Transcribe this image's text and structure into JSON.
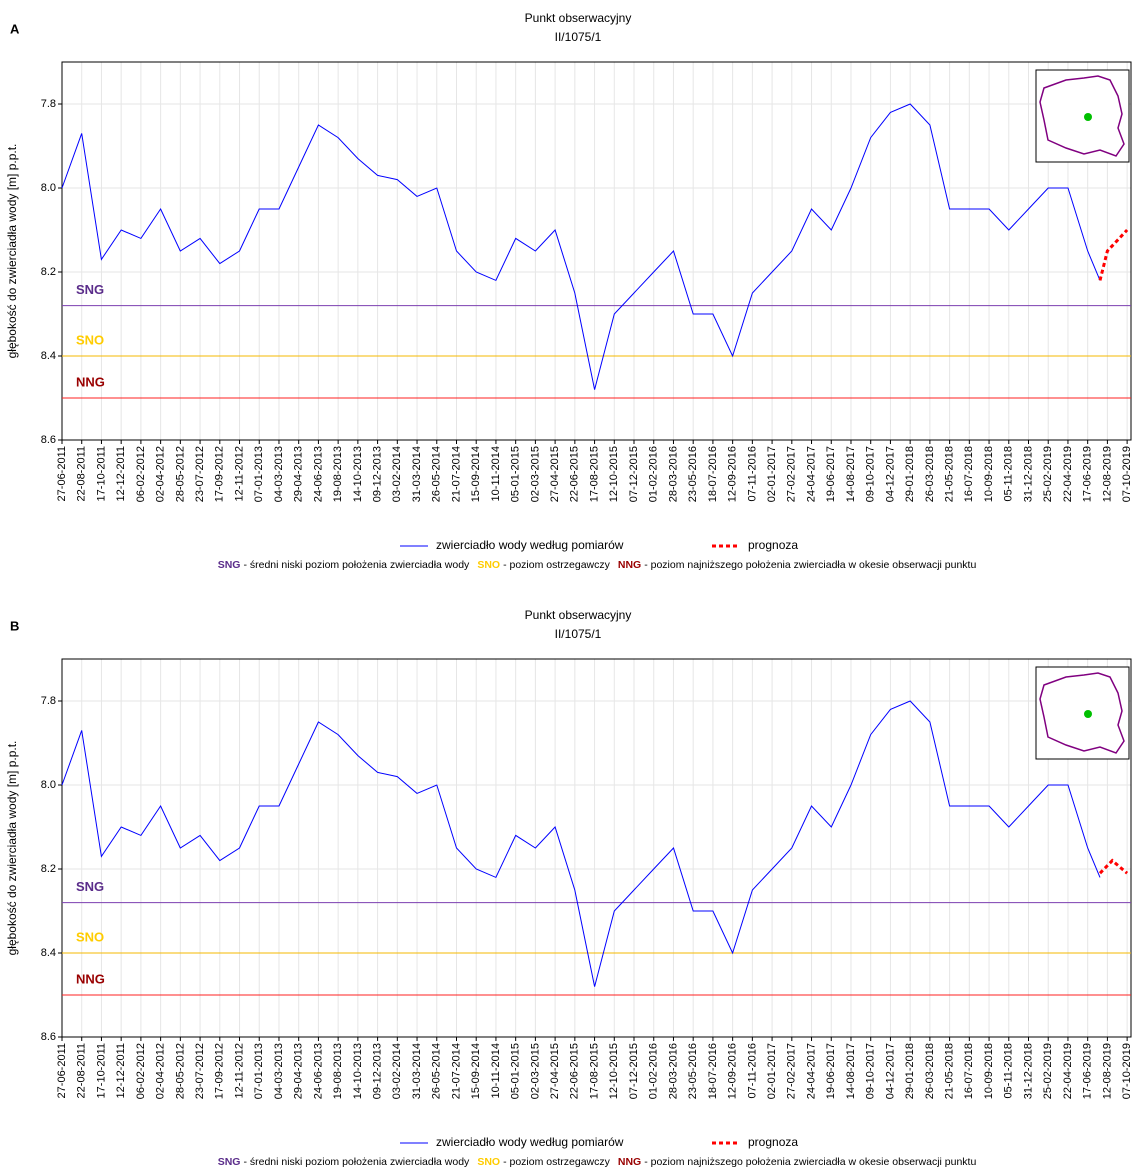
{
  "chart_data": [
    {
      "type": "line",
      "panel_label": "A",
      "title": "Punkt obserwacyjny",
      "subtitle": "II/1075/1",
      "ylabel": "głębokość do zwierciadła wody [m] p.p.t.",
      "xlim": [
        "27-06-2011",
        "18-10-2019"
      ],
      "xticks": [
        "27-06-2011",
        "22-08-2011",
        "17-10-2011",
        "12-12-2011",
        "06-02-2012",
        "02-04-2012",
        "28-05-2012",
        "23-07-2012",
        "17-09-2012",
        "12-11-2012",
        "07-01-2013",
        "04-03-2013",
        "29-04-2013",
        "24-06-2013",
        "19-08-2013",
        "14-10-2013",
        "09-12-2013",
        "03-02-2014",
        "31-03-2014",
        "26-05-2014",
        "21-07-2014",
        "15-09-2014",
        "10-11-2014",
        "05-01-2015",
        "02-03-2015",
        "27-04-2015",
        "22-06-2015",
        "17-08-2015",
        "12-10-2015",
        "07-12-2015",
        "01-02-2016",
        "28-03-2016",
        "23-05-2016",
        "18-07-2016",
        "12-09-2016",
        "07-11-2016",
        "02-01-2017",
        "27-02-2017",
        "24-04-2017",
        "19-06-2017",
        "14-08-2017",
        "09-10-2017",
        "04-12-2017",
        "29-01-2018",
        "26-03-2018",
        "21-05-2018",
        "16-07-2018",
        "10-09-2018",
        "05-11-2018",
        "31-12-2018",
        "25-02-2019",
        "22-04-2019",
        "17-06-2019",
        "12-08-2019",
        "07-10-2019"
      ],
      "ylim": [
        7.7,
        8.6
      ],
      "y_inverted": true,
      "yticks": [
        7.8,
        {
          "value": 8,
          "label": "8.0"
        },
        8.2,
        8.4,
        8.6
      ],
      "grid": true,
      "series": [
        {
          "name": "zwierciadło wody według pomiarów",
          "color": "#0000ff",
          "dashed": false,
          "x": [
            "27-06-2011",
            "22-08-2011",
            "17-10-2011",
            "12-12-2011",
            "06-02-2012",
            "02-04-2012",
            "28-05-2012",
            "23-07-2012",
            "17-09-2012",
            "12-11-2012",
            "07-01-2013",
            "04-03-2013",
            "29-04-2013",
            "24-06-2013",
            "19-08-2013",
            "14-10-2013",
            "09-12-2013",
            "03-02-2014",
            "31-03-2014",
            "26-05-2014",
            "21-07-2014",
            "15-09-2014",
            "10-11-2014",
            "05-01-2015",
            "02-03-2015",
            "27-04-2015",
            "22-06-2015",
            "17-08-2015",
            "12-10-2015",
            "07-12-2015",
            "01-02-2016",
            "28-03-2016",
            "23-05-2016",
            "18-07-2016",
            "12-09-2016",
            "07-11-2016",
            "02-01-2017",
            "27-02-2017",
            "24-04-2017",
            "19-06-2017",
            "14-08-2017",
            "09-10-2017",
            "04-12-2017",
            "29-01-2018",
            "26-03-2018",
            "21-05-2018",
            "16-07-2018",
            "10-09-2018",
            "05-11-2018",
            "31-12-2018",
            "25-02-2019",
            "22-04-2019",
            "17-06-2019",
            "22-07-2019"
          ],
          "values": [
            8.0,
            7.87,
            8.17,
            8.1,
            8.12,
            8.05,
            8.15,
            8.12,
            8.18,
            8.15,
            8.05,
            8.05,
            7.95,
            7.85,
            7.88,
            7.93,
            7.97,
            7.98,
            8.02,
            8.0,
            8.15,
            8.2,
            8.22,
            8.12,
            8.15,
            8.1,
            8.25,
            8.48,
            8.3,
            8.25,
            8.2,
            8.15,
            8.3,
            8.3,
            8.4,
            8.25,
            8.2,
            8.15,
            8.05,
            8.1,
            8.0,
            7.88,
            7.82,
            7.8,
            7.85,
            8.05,
            8.05,
            8.05,
            8.1,
            8.05,
            8.0,
            8.0,
            8.15,
            8.22
          ]
        },
        {
          "name": "prognoza",
          "color": "#ff0000",
          "dashed": true,
          "x": [
            "22-07-2019",
            "12-08-2019",
            "07-10-2019"
          ],
          "values": [
            8.22,
            8.15,
            8.1
          ]
        }
      ],
      "reference_lines": [
        {
          "label": "SNG",
          "value": 8.28,
          "color": "#7b3fb0",
          "label_color": "#5a2c8a"
        },
        {
          "label": "SNO",
          "value": 8.4,
          "color": "#f5b800",
          "label_color": "#ffcc00"
        },
        {
          "label": "NNG",
          "value": 8.5,
          "color": "#ff2020",
          "label_color": "#990000"
        }
      ],
      "footnote": [
        "- średni niski poziom położenia zwierciadła wody",
        "- poziom ostrzegawczy",
        "- poziom najniższego położenia zwierciadła w okesie obserwacji punktu"
      ]
    },
    {
      "type": "line",
      "panel_label": "B",
      "title": "Punkt obserwacyjny",
      "subtitle": "II/1075/1",
      "ylabel": "głębokość do zwierciadła wody [m] p.p.t.",
      "xlim": [
        "27-06-2011",
        "18-10-2019"
      ],
      "xticks": [
        "27-06-2011",
        "22-08-2011",
        "17-10-2011",
        "12-12-2011",
        "06-02-2012",
        "02-04-2012",
        "28-05-2012",
        "23-07-2012",
        "17-09-2012",
        "12-11-2012",
        "07-01-2013",
        "04-03-2013",
        "29-04-2013",
        "24-06-2013",
        "19-08-2013",
        "14-10-2013",
        "09-12-2013",
        "03-02-2014",
        "31-03-2014",
        "26-05-2014",
        "21-07-2014",
        "15-09-2014",
        "10-11-2014",
        "05-01-2015",
        "02-03-2015",
        "27-04-2015",
        "22-06-2015",
        "17-08-2015",
        "12-10-2015",
        "07-12-2015",
        "01-02-2016",
        "28-03-2016",
        "23-05-2016",
        "18-07-2016",
        "12-09-2016",
        "07-11-2016",
        "02-01-2017",
        "27-02-2017",
        "24-04-2017",
        "19-06-2017",
        "14-08-2017",
        "09-10-2017",
        "04-12-2017",
        "29-01-2018",
        "26-03-2018",
        "21-05-2018",
        "16-07-2018",
        "10-09-2018",
        "05-11-2018",
        "31-12-2018",
        "25-02-2019",
        "22-04-2019",
        "17-06-2019",
        "12-08-2019",
        "07-10-2019"
      ],
      "ylim": [
        7.7,
        8.6
      ],
      "y_inverted": true,
      "yticks": [
        7.8,
        {
          "value": 8,
          "label": "8.0"
        },
        8.2,
        8.4,
        8.6
      ],
      "grid": true,
      "series": [
        {
          "name": "zwierciadło wody według pomiarów",
          "color": "#0000ff",
          "dashed": false,
          "x": [
            "27-06-2011",
            "22-08-2011",
            "17-10-2011",
            "12-12-2011",
            "06-02-2012",
            "02-04-2012",
            "28-05-2012",
            "23-07-2012",
            "17-09-2012",
            "12-11-2012",
            "07-01-2013",
            "04-03-2013",
            "29-04-2013",
            "24-06-2013",
            "19-08-2013",
            "14-10-2013",
            "09-12-2013",
            "03-02-2014",
            "31-03-2014",
            "26-05-2014",
            "21-07-2014",
            "15-09-2014",
            "10-11-2014",
            "05-01-2015",
            "02-03-2015",
            "27-04-2015",
            "22-06-2015",
            "17-08-2015",
            "12-10-2015",
            "07-12-2015",
            "01-02-2016",
            "28-03-2016",
            "23-05-2016",
            "18-07-2016",
            "12-09-2016",
            "07-11-2016",
            "02-01-2017",
            "27-02-2017",
            "24-04-2017",
            "19-06-2017",
            "14-08-2017",
            "09-10-2017",
            "04-12-2017",
            "29-01-2018",
            "26-03-2018",
            "21-05-2018",
            "16-07-2018",
            "10-09-2018",
            "05-11-2018",
            "31-12-2018",
            "25-02-2019",
            "22-04-2019",
            "17-06-2019",
            "22-07-2019"
          ],
          "values": [
            8.0,
            7.87,
            8.17,
            8.1,
            8.12,
            8.05,
            8.15,
            8.12,
            8.18,
            8.15,
            8.05,
            8.05,
            7.95,
            7.85,
            7.88,
            7.93,
            7.97,
            7.98,
            8.02,
            8.0,
            8.15,
            8.2,
            8.22,
            8.12,
            8.15,
            8.1,
            8.25,
            8.48,
            8.3,
            8.25,
            8.2,
            8.15,
            8.3,
            8.3,
            8.4,
            8.25,
            8.2,
            8.15,
            8.05,
            8.1,
            8.0,
            7.88,
            7.82,
            7.8,
            7.85,
            8.05,
            8.05,
            8.05,
            8.1,
            8.05,
            8.0,
            8.0,
            8.15,
            8.22
          ]
        },
        {
          "name": "prognoza",
          "color": "#ff0000",
          "dashed": true,
          "x": [
            "22-07-2019",
            "26-08-2019",
            "07-10-2019"
          ],
          "values": [
            8.21,
            8.18,
            8.21
          ]
        }
      ],
      "reference_lines": [
        {
          "label": "SNG",
          "value": 8.28,
          "color": "#7b3fb0",
          "label_color": "#5a2c8a"
        },
        {
          "label": "SNO",
          "value": 8.4,
          "color": "#f5b800",
          "label_color": "#ffcc00"
        },
        {
          "label": "NNG",
          "value": 8.5,
          "color": "#ff2020",
          "label_color": "#990000"
        }
      ],
      "footnote": [
        "- średni niski poziom położenia zwierciadła wody",
        "- poziom ostrzegawczy",
        "- poziom najniższego położenia zwierciadła w okesie obserwacji punktu"
      ]
    }
  ]
}
